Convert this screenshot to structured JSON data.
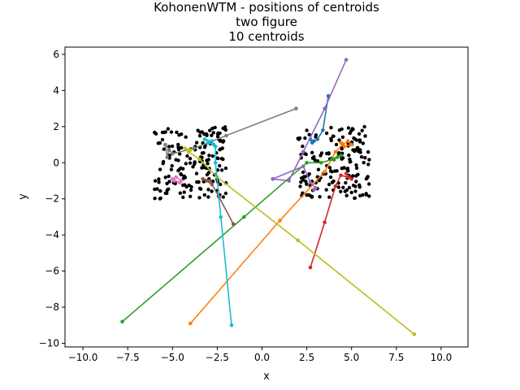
{
  "chart_data": {
    "type": "scatter",
    "title_lines": [
      "KohonenWTM - positions of centroids",
      "two figure",
      "10 centroids"
    ],
    "xlabel": "x",
    "ylabel": "y",
    "xlim": [
      -11.0,
      11.5
    ],
    "ylim": [
      -10.2,
      6.4
    ],
    "xticks": [
      -10.0,
      -7.5,
      -5.0,
      -2.5,
      0.0,
      2.5,
      5.0,
      7.5,
      10.0
    ],
    "xtick_labels": [
      "−10.0",
      "−7.5",
      "−5.0",
      "−2.5",
      "0.0",
      "2.5",
      "5.0",
      "7.5",
      "10.0"
    ],
    "yticks": [
      -10,
      -8,
      -6,
      -4,
      -2,
      0,
      2,
      4,
      6
    ],
    "ytick_labels": [
      "−10",
      "−8",
      "−6",
      "−4",
      "−2",
      "0",
      "2",
      "4",
      "6"
    ],
    "grid": false,
    "data_clusters": [
      {
        "name": "left",
        "x_range": [
          -6.0,
          -2.0
        ],
        "y_range": [
          -2.0,
          2.0
        ]
      },
      {
        "name": "right",
        "x_range": [
          2.0,
          6.0
        ],
        "y_range": [
          -2.0,
          2.0
        ]
      }
    ],
    "series": [
      {
        "color": "#1f77b4",
        "points": [
          [
            3.7,
            3.7
          ],
          [
            3.4,
            1.8
          ],
          [
            3.1,
            1.3
          ],
          [
            2.8,
            1.1
          ],
          [
            2.7,
            1.3
          ],
          [
            2.9,
            1.2
          ]
        ]
      },
      {
        "color": "#ff7f0e",
        "points": [
          [
            -4.0,
            -8.9
          ],
          [
            1.0,
            -3.2
          ],
          [
            3.5,
            -0.5
          ],
          [
            4.1,
            0.6
          ],
          [
            4.5,
            1.0
          ],
          [
            4.8,
            1.2
          ],
          [
            5.0,
            1.0
          ],
          [
            4.6,
            0.9
          ],
          [
            4.4,
            1.1
          ]
        ]
      },
      {
        "color": "#2ca02c",
        "points": [
          [
            -7.8,
            -8.8
          ],
          [
            -1.0,
            -3.0
          ],
          [
            2.5,
            0.0
          ],
          [
            3.3,
            0.0
          ],
          [
            4.0,
            0.2
          ],
          [
            4.4,
            0.4
          ],
          [
            4.2,
            0.3
          ],
          [
            3.9,
            0.2
          ]
        ]
      },
      {
        "color": "#d62728",
        "points": [
          [
            2.7,
            -5.8
          ],
          [
            3.5,
            -3.3
          ],
          [
            4.1,
            -1.3
          ],
          [
            4.4,
            -0.7
          ],
          [
            4.8,
            -0.8
          ],
          [
            5.0,
            -0.9
          ],
          [
            4.7,
            -0.6
          ]
        ]
      },
      {
        "color": "#9467bd",
        "points": [
          [
            4.7,
            5.7
          ],
          [
            3.5,
            3.0
          ],
          [
            2.3,
            0.6
          ],
          [
            1.5,
            -1.0
          ],
          [
            0.6,
            -0.9
          ],
          [
            2.3,
            -0.2
          ],
          [
            2.7,
            -1.1
          ],
          [
            3.0,
            -1.4
          ],
          [
            2.9,
            -1.5
          ]
        ]
      },
      {
        "color": "#8c564b",
        "points": [
          [
            -1.6,
            -3.4
          ],
          [
            -2.4,
            -1.9
          ],
          [
            -2.8,
            -1.2
          ],
          [
            -3.1,
            -1.0
          ],
          [
            -3.3,
            -0.9
          ],
          [
            -2.9,
            -1.0
          ]
        ]
      },
      {
        "color": "#e377c2",
        "points": [
          [
            -4.5,
            -1.0
          ],
          [
            -4.8,
            -0.8
          ],
          [
            -5.0,
            -0.9
          ],
          [
            -4.6,
            -1.1
          ],
          [
            -4.9,
            -1.0
          ]
        ]
      },
      {
        "color": "#7f7f7f",
        "points": [
          [
            1.9,
            3.0
          ],
          [
            -2.0,
            1.5
          ],
          [
            -3.8,
            0.8
          ],
          [
            -5.0,
            0.5
          ],
          [
            -5.4,
            1.0
          ],
          [
            -5.3,
            0.3
          ],
          [
            -5.2,
            0.7
          ]
        ]
      },
      {
        "color": "#bcbd22",
        "points": [
          [
            8.5,
            -9.5
          ],
          [
            2.0,
            -4.3
          ],
          [
            -2.5,
            -0.8
          ],
          [
            -3.5,
            0.2
          ],
          [
            -4.1,
            0.6
          ],
          [
            -4.3,
            0.8
          ],
          [
            -4.0,
            0.7
          ]
        ]
      },
      {
        "color": "#17becf",
        "points": [
          [
            -1.7,
            -9.0
          ],
          [
            -2.3,
            -3.0
          ],
          [
            -2.6,
            0.0
          ],
          [
            -2.6,
            0.9
          ],
          [
            -2.8,
            1.2
          ],
          [
            -3.2,
            1.3
          ],
          [
            -3.0,
            1.1
          ],
          [
            -2.7,
            1.0
          ]
        ]
      }
    ]
  }
}
